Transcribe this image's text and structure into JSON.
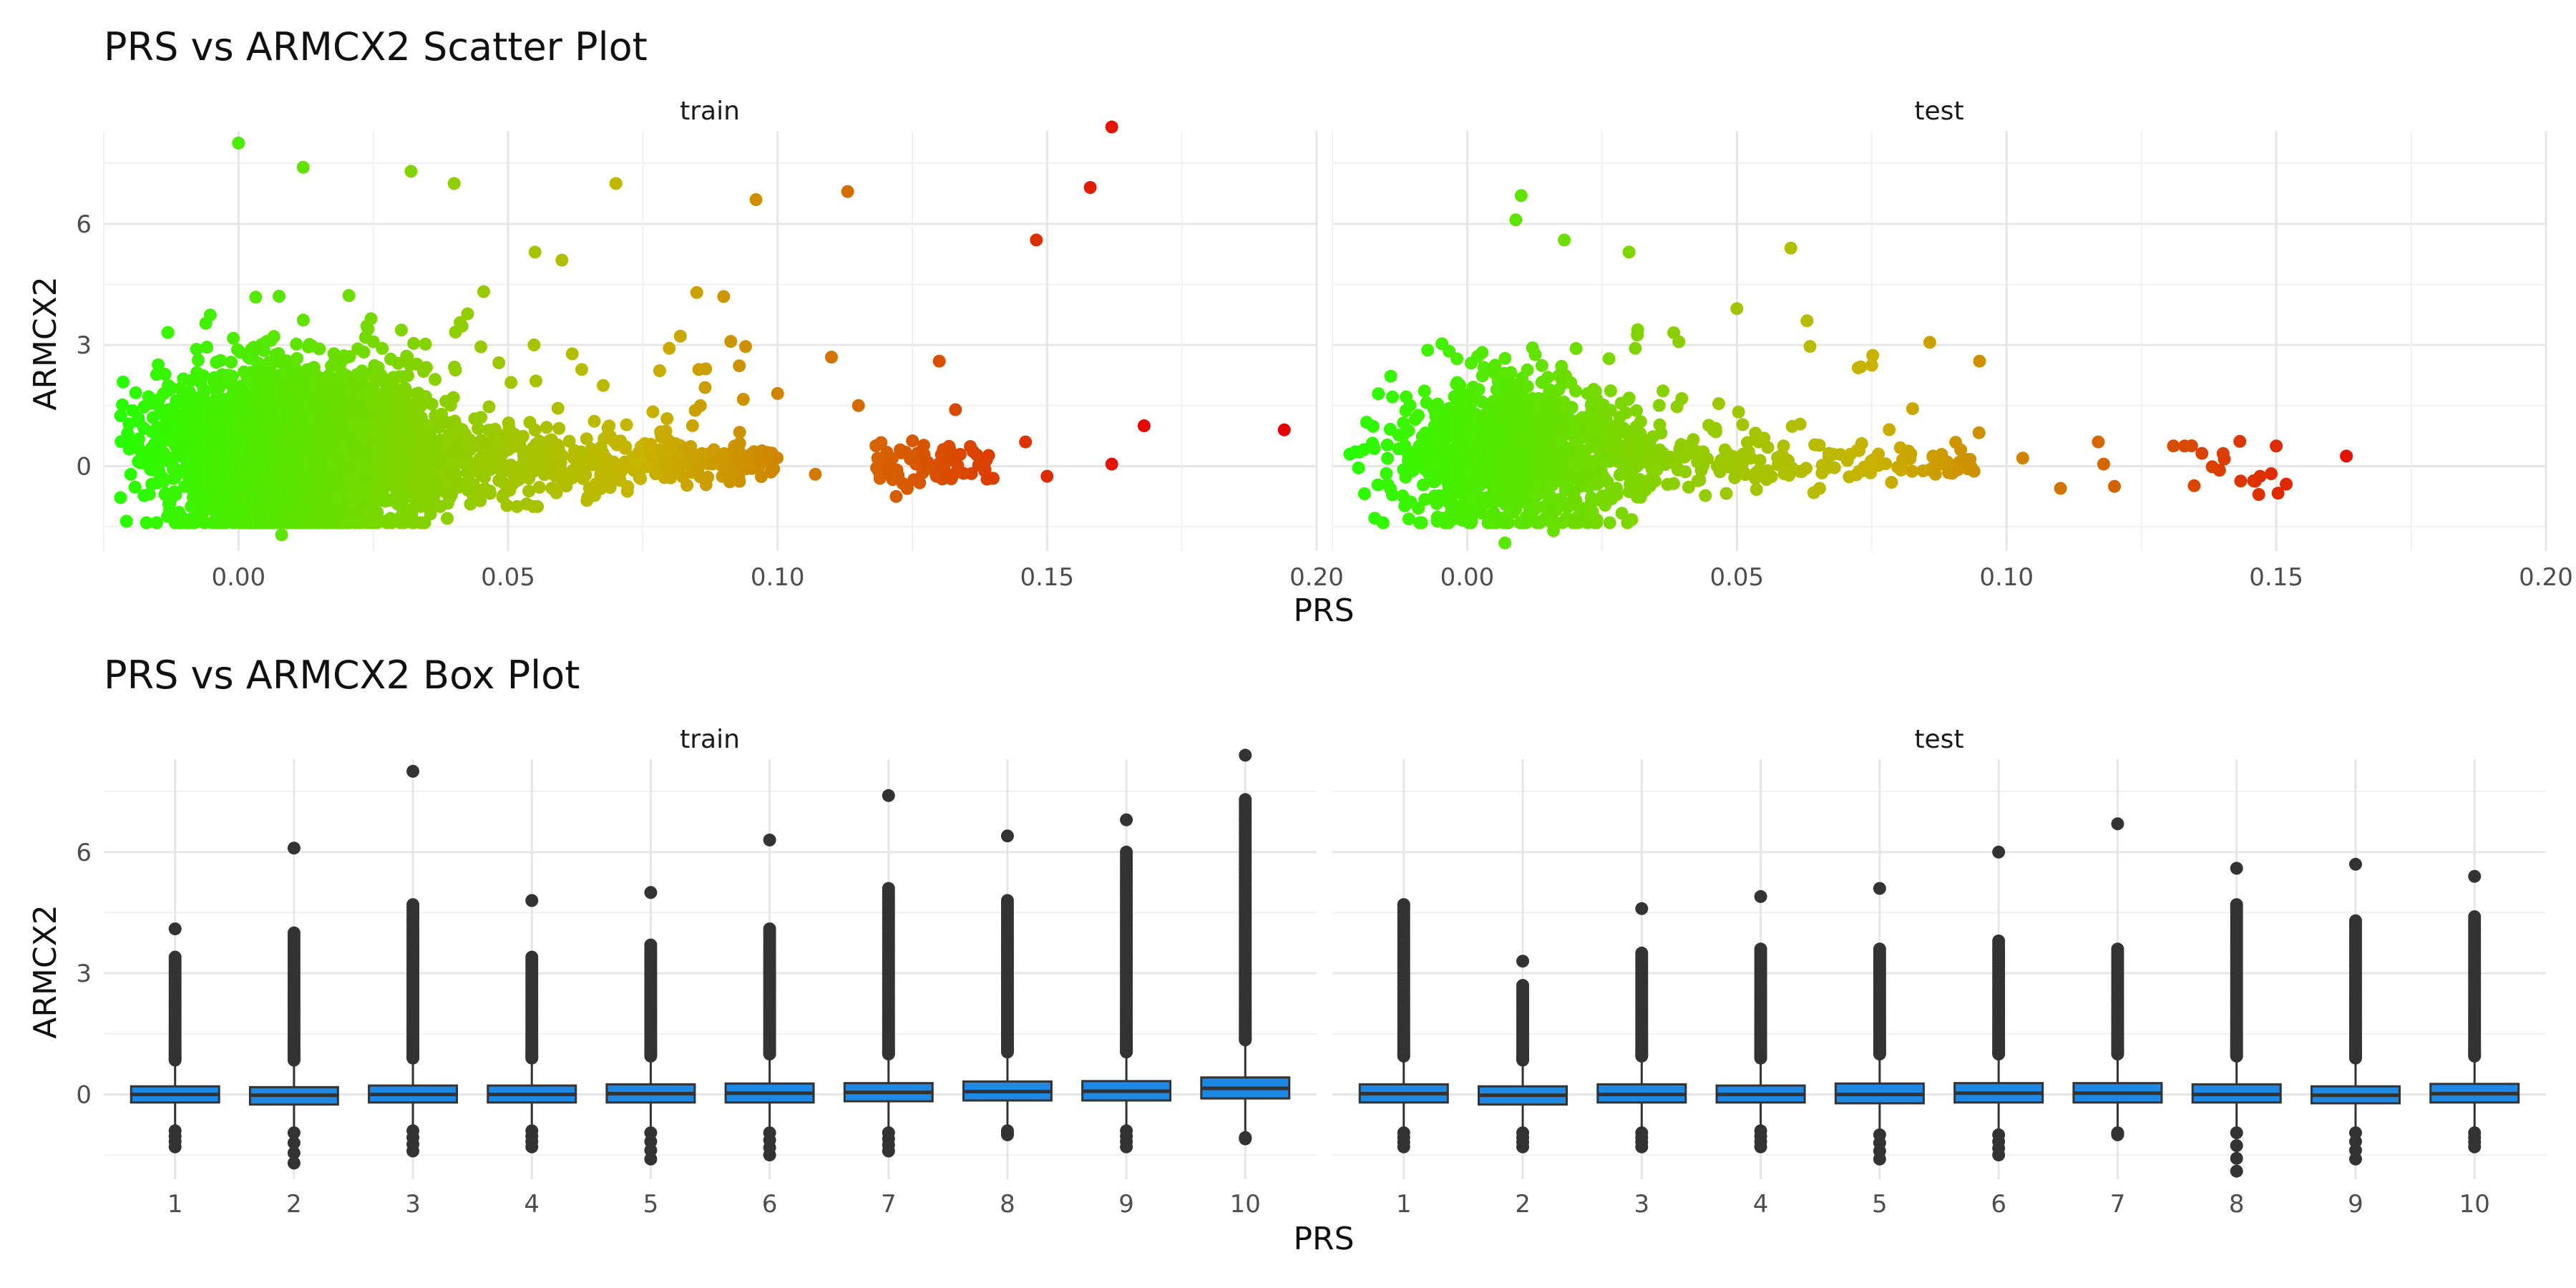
{
  "chart_data": [
    {
      "type": "scatter",
      "title": "PRS vs ARMCX2 Scatter Plot",
      "xlabel": "PRS",
      "ylabel": "ARMCX2",
      "xlim": [
        -0.025,
        0.2
      ],
      "ylim": [
        -2.1,
        8.3
      ],
      "x_ticks": [
        "0.00",
        "0.05",
        "0.10",
        "0.15",
        "0.20"
      ],
      "x_tick_values": [
        0,
        0.05,
        0.1,
        0.15,
        0.2
      ],
      "y_ticks": [
        "0",
        "3",
        "6"
      ],
      "y_tick_values": [
        0,
        3,
        6
      ],
      "grid": true,
      "legend": "none",
      "color_gradient": {
        "low": "#22ff00",
        "mid": "#c8b400",
        "high": "#e60000",
        "encodes": "PRS"
      },
      "panels": [
        {
          "name": "train",
          "cloud": {
            "x_center": 0.01,
            "x_sd": 0.012,
            "y_center": 0.4,
            "y_sd": 1.0,
            "n": 3000
          },
          "tail": {
            "x_from": 0.03,
            "x_to": 0.1,
            "y_center": 0.1,
            "y_sd": 0.45,
            "n": 650
          },
          "cluster": {
            "x_from": 0.118,
            "x_to": 0.14,
            "y_center": 0.05,
            "y_sd": 0.3,
            "n": 70
          },
          "points": [
            {
              "x": 0.0,
              "y": 8.0
            },
            {
              "x": 0.012,
              "y": 7.4
            },
            {
              "x": 0.032,
              "y": 7.3
            },
            {
              "x": 0.04,
              "y": 7.0
            },
            {
              "x": 0.07,
              "y": 7.0
            },
            {
              "x": 0.096,
              "y": 6.6
            },
            {
              "x": 0.113,
              "y": 6.8
            },
            {
              "x": 0.162,
              "y": 8.4
            },
            {
              "x": 0.158,
              "y": 6.9
            },
            {
              "x": 0.148,
              "y": 5.6
            },
            {
              "x": 0.168,
              "y": 1.0
            },
            {
              "x": 0.194,
              "y": 0.9
            },
            {
              "x": 0.162,
              "y": 0.05
            },
            {
              "x": 0.15,
              "y": -0.25
            },
            {
              "x": 0.146,
              "y": 0.6
            },
            {
              "x": 0.13,
              "y": 2.6
            },
            {
              "x": 0.11,
              "y": 2.7
            },
            {
              "x": 0.133,
              "y": 1.4
            },
            {
              "x": 0.115,
              "y": 1.5
            },
            {
              "x": 0.1,
              "y": 1.8
            },
            {
              "x": 0.09,
              "y": 4.2
            },
            {
              "x": 0.085,
              "y": 4.3
            },
            {
              "x": 0.055,
              "y": 5.3
            },
            {
              "x": 0.06,
              "y": 5.1
            },
            {
              "x": 0.122,
              "y": -0.75
            },
            {
              "x": 0.107,
              "y": -0.2
            },
            {
              "x": 0.008,
              "y": -1.7
            },
            {
              "x": -0.02,
              "y": -0.2
            }
          ]
        },
        {
          "name": "test",
          "cloud": {
            "x_center": 0.009,
            "x_sd": 0.011,
            "y_center": 0.3,
            "y_sd": 0.9,
            "n": 1100
          },
          "tail": {
            "x_from": 0.03,
            "x_to": 0.095,
            "y_center": 0.05,
            "y_sd": 0.35,
            "n": 230
          },
          "cluster": {
            "x_from": 0.13,
            "x_to": 0.152,
            "y_center": 0.0,
            "y_sd": 0.3,
            "n": 16
          },
          "points": [
            {
              "x": 0.01,
              "y": 6.7
            },
            {
              "x": 0.009,
              "y": 6.1
            },
            {
              "x": 0.018,
              "y": 5.6
            },
            {
              "x": 0.03,
              "y": 5.3
            },
            {
              "x": 0.06,
              "y": 5.4
            },
            {
              "x": 0.05,
              "y": 3.9
            },
            {
              "x": 0.063,
              "y": 3.6
            },
            {
              "x": 0.095,
              "y": 2.6
            },
            {
              "x": 0.075,
              "y": 2.5
            },
            {
              "x": 0.117,
              "y": 0.6
            },
            {
              "x": 0.118,
              "y": 0.05
            },
            {
              "x": 0.12,
              "y": -0.5
            },
            {
              "x": 0.11,
              "y": -0.55
            },
            {
              "x": 0.103,
              "y": 0.2
            },
            {
              "x": 0.133,
              "y": 0.5
            },
            {
              "x": 0.15,
              "y": 0.5
            },
            {
              "x": 0.163,
              "y": 0.25
            },
            {
              "x": 0.147,
              "y": -0.25
            },
            {
              "x": 0.016,
              "y": -1.6
            },
            {
              "x": 0.007,
              "y": -1.9
            },
            {
              "x": -0.02,
              "y": 0.35
            }
          ]
        }
      ]
    },
    {
      "type": "box",
      "title": "PRS vs ARMCX2 Box Plot",
      "xlabel": "PRS",
      "ylabel": "ARMCX2",
      "ylim": [
        -2.1,
        8.3
      ],
      "categories": [
        "1",
        "2",
        "3",
        "4",
        "5",
        "6",
        "7",
        "8",
        "9",
        "10"
      ],
      "y_ticks": [
        "0",
        "3",
        "6"
      ],
      "y_tick_values": [
        0,
        3,
        6
      ],
      "box_color": "#1e88e5",
      "grid": true,
      "panels": [
        {
          "name": "train",
          "boxes": [
            {
              "q1": -0.2,
              "median": 0.0,
              "q3": 0.2,
              "whisker_low": -0.8,
              "whisker_high": 0.8,
              "outliers_high_from": 0.85,
              "outliers_high_to": 3.4,
              "max": 4.1,
              "min": -1.3
            },
            {
              "q1": -0.25,
              "median": -0.02,
              "q3": 0.18,
              "whisker_low": -0.85,
              "whisker_high": 0.8,
              "outliers_high_from": 0.85,
              "outliers_high_to": 4.0,
              "max": 6.1,
              "min": -1.7
            },
            {
              "q1": -0.2,
              "median": 0.0,
              "q3": 0.22,
              "whisker_low": -0.8,
              "whisker_high": 0.85,
              "outliers_high_from": 0.9,
              "outliers_high_to": 4.7,
              "max": 8.0,
              "min": -1.4
            },
            {
              "q1": -0.2,
              "median": 0.0,
              "q3": 0.22,
              "whisker_low": -0.8,
              "whisker_high": 0.85,
              "outliers_high_from": 0.9,
              "outliers_high_to": 3.4,
              "max": 4.8,
              "min": -1.3
            },
            {
              "q1": -0.2,
              "median": 0.02,
              "q3": 0.25,
              "whisker_low": -0.85,
              "whisker_high": 0.9,
              "outliers_high_from": 0.95,
              "outliers_high_to": 3.7,
              "max": 5.0,
              "min": -1.6
            },
            {
              "q1": -0.2,
              "median": 0.03,
              "q3": 0.27,
              "whisker_low": -0.85,
              "whisker_high": 0.95,
              "outliers_high_from": 1.0,
              "outliers_high_to": 4.1,
              "max": 6.3,
              "min": -1.5
            },
            {
              "q1": -0.17,
              "median": 0.05,
              "q3": 0.28,
              "whisker_low": -0.85,
              "whisker_high": 0.95,
              "outliers_high_from": 1.0,
              "outliers_high_to": 5.1,
              "max": 7.4,
              "min": -1.4
            },
            {
              "q1": -0.15,
              "median": 0.07,
              "q3": 0.32,
              "whisker_low": -0.8,
              "whisker_high": 1.0,
              "outliers_high_from": 1.05,
              "outliers_high_to": 4.8,
              "max": 6.4,
              "min": -1.0
            },
            {
              "q1": -0.15,
              "median": 0.08,
              "q3": 0.33,
              "whisker_low": -0.8,
              "whisker_high": 1.0,
              "outliers_high_from": 1.05,
              "outliers_high_to": 6.0,
              "max": 6.8,
              "min": -1.3
            },
            {
              "q1": -0.1,
              "median": 0.15,
              "q3": 0.42,
              "whisker_low": -1.0,
              "whisker_high": 1.3,
              "outliers_high_from": 1.35,
              "outliers_high_to": 7.3,
              "max": 8.4,
              "min": -1.0
            }
          ]
        },
        {
          "name": "test",
          "boxes": [
            {
              "q1": -0.2,
              "median": 0.02,
              "q3": 0.25,
              "whisker_low": -0.85,
              "whisker_high": 0.9,
              "outliers_high_from": 0.95,
              "outliers_high_to": 4.7,
              "max": 4.7,
              "min": -1.3
            },
            {
              "q1": -0.25,
              "median": -0.02,
              "q3": 0.2,
              "whisker_low": -0.85,
              "whisker_high": 0.8,
              "outliers_high_from": 0.85,
              "outliers_high_to": 2.7,
              "max": 3.3,
              "min": -1.3
            },
            {
              "q1": -0.2,
              "median": 0.0,
              "q3": 0.25,
              "whisker_low": -0.85,
              "whisker_high": 0.9,
              "outliers_high_from": 0.95,
              "outliers_high_to": 3.5,
              "max": 4.6,
              "min": -1.3
            },
            {
              "q1": -0.2,
              "median": 0.0,
              "q3": 0.22,
              "whisker_low": -0.8,
              "whisker_high": 0.85,
              "outliers_high_from": 0.9,
              "outliers_high_to": 3.6,
              "max": 4.9,
              "min": -1.3
            },
            {
              "q1": -0.22,
              "median": 0.0,
              "q3": 0.27,
              "whisker_low": -0.9,
              "whisker_high": 0.95,
              "outliers_high_from": 1.0,
              "outliers_high_to": 3.6,
              "max": 5.1,
              "min": -1.6
            },
            {
              "q1": -0.2,
              "median": 0.03,
              "q3": 0.28,
              "whisker_low": -0.9,
              "whisker_high": 0.95,
              "outliers_high_from": 1.0,
              "outliers_high_to": 3.8,
              "max": 6.0,
              "min": -1.5
            },
            {
              "q1": -0.2,
              "median": 0.03,
              "q3": 0.28,
              "whisker_low": -0.85,
              "whisker_high": 0.95,
              "outliers_high_from": 1.0,
              "outliers_high_to": 3.6,
              "max": 6.7,
              "min": -1.0
            },
            {
              "q1": -0.2,
              "median": 0.0,
              "q3": 0.25,
              "whisker_low": -0.85,
              "whisker_high": 0.9,
              "outliers_high_from": 0.95,
              "outliers_high_to": 4.7,
              "max": 5.6,
              "min": -1.9
            },
            {
              "q1": -0.22,
              "median": -0.02,
              "q3": 0.2,
              "whisker_low": -0.85,
              "whisker_high": 0.85,
              "outliers_high_from": 0.9,
              "outliers_high_to": 4.3,
              "max": 5.7,
              "min": -1.6
            },
            {
              "q1": -0.2,
              "median": 0.02,
              "q3": 0.26,
              "whisker_low": -0.85,
              "whisker_high": 0.9,
              "outliers_high_from": 0.95,
              "outliers_high_to": 4.4,
              "max": 5.4,
              "min": -1.3
            }
          ]
        }
      ]
    }
  ]
}
